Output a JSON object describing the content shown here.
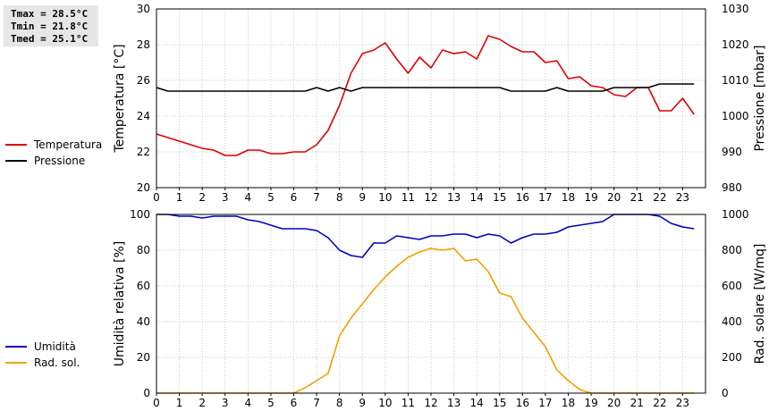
{
  "stats": {
    "tmax": "Tmax = 28.5°C",
    "tmin": "Tmin = 21.8°C",
    "tmed": "Tmed = 25.1°C"
  },
  "chart_data": [
    {
      "type": "line",
      "xlim": [
        0,
        24
      ],
      "xticks": [
        "0",
        "1",
        "2",
        "3",
        "4",
        "5",
        "6",
        "7",
        "8",
        "9",
        "10",
        "11",
        "12",
        "13",
        "14",
        "15",
        "16",
        "17",
        "18",
        "19",
        "20",
        "21",
        "22",
        "23"
      ],
      "ylabel": "Temperatura [°C]",
      "ylim": [
        20,
        30
      ],
      "yticks": [
        "20",
        "22",
        "24",
        "26",
        "28",
        "30"
      ],
      "y2label": "Pressione [mbar]",
      "y2lim": [
        980,
        1030
      ],
      "y2ticks": [
        "980",
        "990",
        "1000",
        "1010",
        "1020",
        "1030"
      ],
      "grid": true,
      "legend_placement": "left",
      "series": [
        {
          "name": "Temperatura",
          "color": "#e00000",
          "axis": "left",
          "x": [
            0,
            0.5,
            1,
            1.5,
            2,
            2.5,
            3,
            3.5,
            4,
            4.5,
            5,
            5.5,
            6,
            6.5,
            7,
            7.5,
            8,
            8.5,
            9,
            9.5,
            10,
            10.5,
            11,
            11.5,
            12,
            12.5,
            13,
            13.5,
            14,
            14.5,
            15,
            15.5,
            16,
            16.5,
            17,
            17.5,
            18,
            18.5,
            19,
            19.5,
            20,
            20.5,
            21,
            21.5,
            22,
            22.5,
            23,
            23.5
          ],
          "values": [
            23.0,
            22.8,
            22.6,
            22.4,
            22.2,
            22.1,
            21.8,
            21.8,
            22.1,
            22.1,
            21.9,
            21.9,
            22.0,
            22.0,
            22.4,
            23.2,
            24.6,
            26.4,
            27.5,
            27.7,
            28.1,
            27.2,
            26.4,
            27.3,
            26.7,
            27.7,
            27.5,
            27.6,
            27.2,
            28.5,
            28.3,
            27.9,
            27.6,
            27.6,
            27.0,
            27.1,
            26.1,
            26.2,
            25.7,
            25.6,
            25.2,
            25.1,
            25.6,
            25.6,
            24.3,
            24.3,
            25.0,
            24.1
          ]
        },
        {
          "name": "Pressione",
          "color": "#000000",
          "axis": "right",
          "x": [
            0,
            0.5,
            1,
            1.5,
            2,
            2.5,
            3,
            3.5,
            4,
            4.5,
            5,
            5.5,
            6,
            6.5,
            7,
            7.5,
            8,
            8.5,
            9,
            9.5,
            10,
            10.5,
            11,
            11.5,
            12,
            12.5,
            13,
            13.5,
            14,
            14.5,
            15,
            15.5,
            16,
            16.5,
            17,
            17.5,
            18,
            18.5,
            19,
            19.5,
            20,
            20.5,
            21,
            21.5,
            22,
            22.5,
            23,
            23.5
          ],
          "values": [
            1008,
            1007,
            1007,
            1007,
            1007,
            1007,
            1007,
            1007,
            1007,
            1007,
            1007,
            1007,
            1007,
            1007,
            1008,
            1007,
            1008,
            1007,
            1008,
            1008,
            1008,
            1008,
            1008,
            1008,
            1008,
            1008,
            1008,
            1008,
            1008,
            1008,
            1008,
            1007,
            1007,
            1007,
            1007,
            1008,
            1007,
            1007,
            1007,
            1007,
            1008,
            1008,
            1008,
            1008,
            1009,
            1009,
            1009,
            1009
          ]
        }
      ]
    },
    {
      "type": "line",
      "xlim": [
        0,
        24
      ],
      "xticks": [
        "0",
        "1",
        "2",
        "3",
        "4",
        "5",
        "6",
        "7",
        "8",
        "9",
        "10",
        "11",
        "12",
        "13",
        "14",
        "15",
        "16",
        "17",
        "18",
        "19",
        "20",
        "21",
        "22",
        "23"
      ],
      "ylabel": "Umidità relativa [%]",
      "ylim": [
        0,
        100
      ],
      "yticks": [
        "0",
        "20",
        "40",
        "60",
        "80",
        "100"
      ],
      "y2label": "Rad. solare [W/mq]",
      "y2lim": [
        0,
        1000
      ],
      "y2ticks": [
        "0",
        "200",
        "400",
        "600",
        "800",
        "1000"
      ],
      "grid": true,
      "legend_placement": "left",
      "series": [
        {
          "name": "Umidità",
          "color": "#0000c0",
          "axis": "left",
          "x": [
            0,
            0.5,
            1,
            1.5,
            2,
            2.5,
            3,
            3.5,
            4,
            4.5,
            5,
            5.5,
            6,
            6.5,
            7,
            7.5,
            8,
            8.5,
            9,
            9.5,
            10,
            10.5,
            11,
            11.5,
            12,
            12.5,
            13,
            13.5,
            14,
            14.5,
            15,
            15.5,
            16,
            16.5,
            17,
            17.5,
            18,
            18.5,
            19,
            19.5,
            20,
            20.5,
            21,
            21.5,
            22,
            22.5,
            23,
            23.5
          ],
          "values": [
            100,
            100,
            99,
            99,
            98,
            99,
            99,
            99,
            97,
            96,
            94,
            92,
            92,
            92,
            91,
            87,
            80,
            77,
            76,
            84,
            84,
            88,
            87,
            86,
            88,
            88,
            89,
            89,
            87,
            89,
            88,
            84,
            87,
            89,
            89,
            90,
            93,
            94,
            95,
            96,
            100,
            100,
            100,
            100,
            99,
            95,
            93,
            92
          ]
        },
        {
          "name": "Rad. sol.",
          "color": "#f0a000",
          "axis": "right",
          "x": [
            0,
            0.5,
            1,
            1.5,
            2,
            2.5,
            3,
            3.5,
            4,
            4.5,
            5,
            5.5,
            6,
            6.5,
            7,
            7.5,
            8,
            8.5,
            9,
            9.5,
            10,
            10.5,
            11,
            11.5,
            12,
            12.5,
            13,
            13.5,
            14,
            14.5,
            15,
            15.5,
            16,
            16.5,
            17,
            17.5,
            18,
            18.5,
            19,
            19.5,
            20,
            20.5,
            21,
            21.5,
            22,
            22.5,
            23,
            23.5
          ],
          "values": [
            0,
            0,
            0,
            0,
            0,
            0,
            0,
            0,
            0,
            0,
            0,
            0,
            0,
            30,
            70,
            110,
            320,
            420,
            500,
            580,
            650,
            710,
            760,
            790,
            810,
            800,
            810,
            740,
            750,
            680,
            560,
            540,
            420,
            340,
            260,
            130,
            70,
            20,
            0,
            0,
            0,
            0,
            0,
            0,
            0,
            0,
            0,
            0
          ]
        }
      ]
    }
  ]
}
